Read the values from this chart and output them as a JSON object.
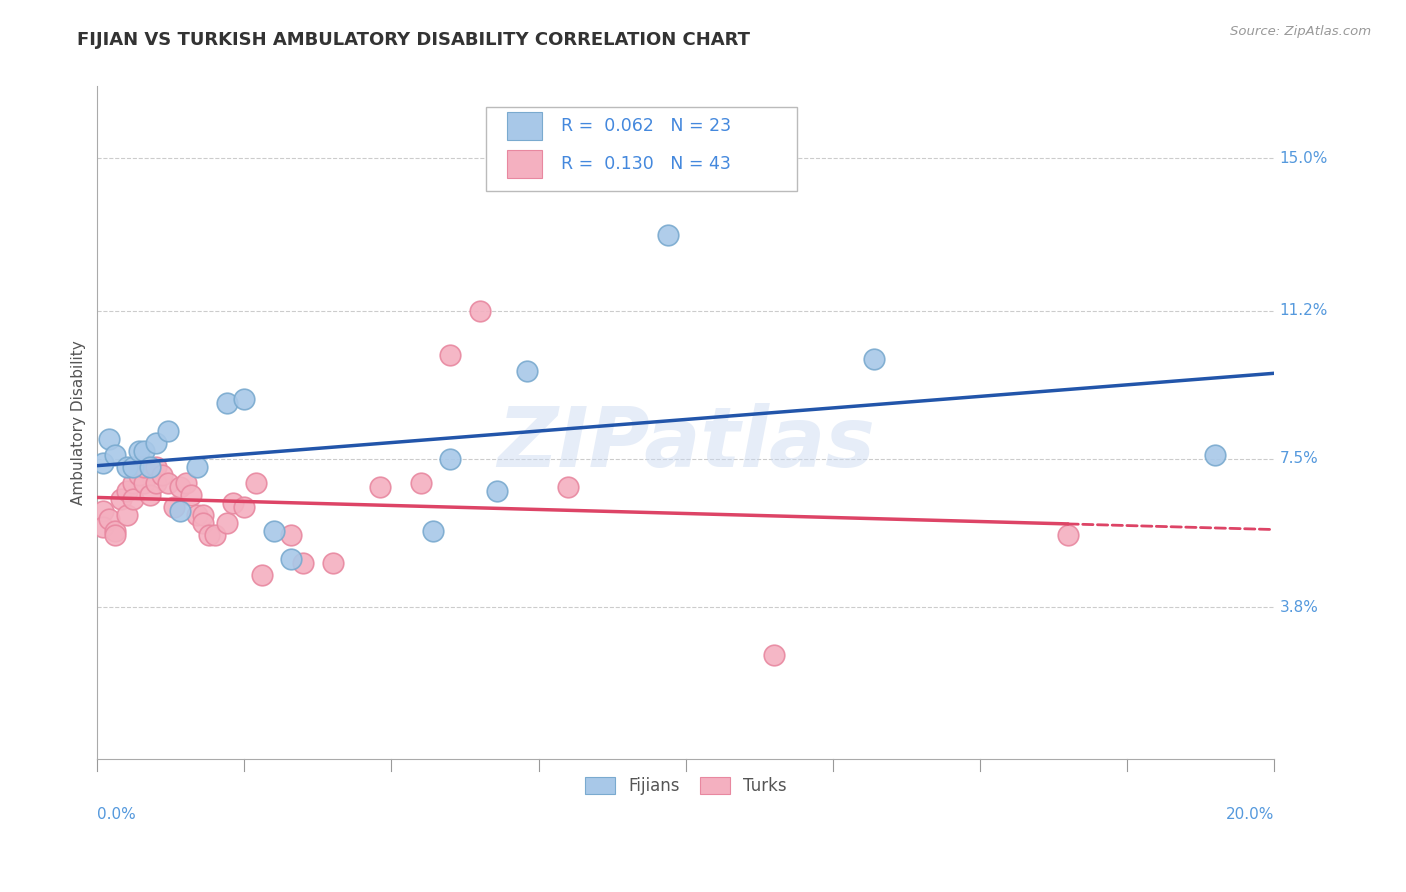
{
  "title": "FIJIAN VS TURKISH AMBULATORY DISABILITY CORRELATION CHART",
  "source_text": "Source: ZipAtlas.com",
  "ylabel": "Ambulatory Disability",
  "xlim": [
    0.0,
    0.2
  ],
  "ylim": [
    0.0,
    0.168
  ],
  "ytick_values": [
    0.038,
    0.075,
    0.112,
    0.15
  ],
  "ytick_labels": [
    "3.8%",
    "7.5%",
    "11.2%",
    "15.0%"
  ],
  "xtick_values": [
    0.0,
    0.025,
    0.05,
    0.075,
    0.1,
    0.125,
    0.15,
    0.175,
    0.2
  ],
  "grid_color": "#cccccc",
  "background_color": "#ffffff",
  "fijian_color": "#a8c8e8",
  "turkish_color": "#f4b0c0",
  "fijian_edge_color": "#7aaacf",
  "turkish_edge_color": "#e888a0",
  "fijian_line_color": "#2255aa",
  "turkish_line_color": "#dd4466",
  "legend_color": "#4488dd",
  "fijian_R": 0.062,
  "fijian_N": 23,
  "turkish_R": 0.13,
  "turkish_N": 43,
  "fijian_x": [
    0.001,
    0.002,
    0.003,
    0.005,
    0.006,
    0.007,
    0.008,
    0.009,
    0.01,
    0.012,
    0.014,
    0.017,
    0.022,
    0.025,
    0.03,
    0.033,
    0.057,
    0.06,
    0.068,
    0.073,
    0.097,
    0.132,
    0.19
  ],
  "fijian_y": [
    0.074,
    0.08,
    0.076,
    0.073,
    0.073,
    0.077,
    0.077,
    0.073,
    0.079,
    0.082,
    0.062,
    0.073,
    0.089,
    0.09,
    0.057,
    0.05,
    0.057,
    0.075,
    0.067,
    0.097,
    0.131,
    0.1,
    0.076
  ],
  "turkish_x": [
    0.001,
    0.001,
    0.002,
    0.003,
    0.003,
    0.004,
    0.005,
    0.005,
    0.006,
    0.006,
    0.007,
    0.007,
    0.008,
    0.008,
    0.009,
    0.01,
    0.01,
    0.011,
    0.012,
    0.013,
    0.014,
    0.015,
    0.016,
    0.017,
    0.018,
    0.018,
    0.019,
    0.02,
    0.022,
    0.023,
    0.025,
    0.027,
    0.028,
    0.033,
    0.035,
    0.04,
    0.048,
    0.055,
    0.06,
    0.065,
    0.08,
    0.115,
    0.165
  ],
  "turkish_y": [
    0.062,
    0.058,
    0.06,
    0.057,
    0.056,
    0.065,
    0.067,
    0.061,
    0.069,
    0.065,
    0.073,
    0.071,
    0.069,
    0.073,
    0.066,
    0.073,
    0.069,
    0.071,
    0.069,
    0.063,
    0.068,
    0.069,
    0.066,
    0.061,
    0.061,
    0.059,
    0.056,
    0.056,
    0.059,
    0.064,
    0.063,
    0.069,
    0.046,
    0.056,
    0.049,
    0.049,
    0.068,
    0.069,
    0.101,
    0.112,
    0.068,
    0.026,
    0.056
  ],
  "watermark_text": "ZIPatlas",
  "title_fontsize": 13,
  "axis_label_fontsize": 11,
  "tick_fontsize": 11
}
